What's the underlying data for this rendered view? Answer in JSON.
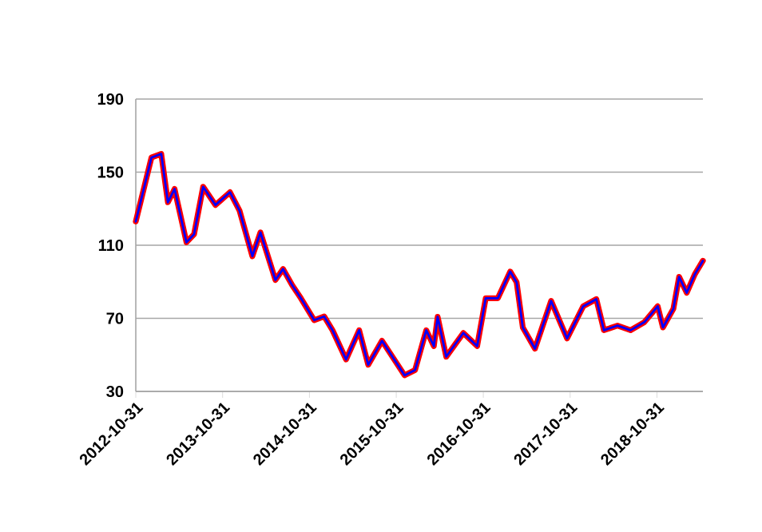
{
  "chart_data": {
    "type": "line",
    "x": [
      "2012-10-31",
      "2013-01-05",
      "2013-02-15",
      "2013-03-15",
      "2013-04-12",
      "2013-06-01",
      "2013-07-03",
      "2013-08-10",
      "2013-10-01",
      "2013-12-01",
      "2014-01-10",
      "2014-03-05",
      "2014-04-08",
      "2014-06-10",
      "2014-07-12",
      "2014-08-20",
      "2014-09-25",
      "2014-11-20",
      "2015-01-01",
      "2015-02-05",
      "2015-04-03",
      "2015-05-28",
      "2015-07-05",
      "2015-09-01",
      "2015-12-05",
      "2016-01-18",
      "2016-03-05",
      "2016-04-06",
      "2016-04-22",
      "2016-05-28",
      "2016-08-08",
      "2016-10-05",
      "2016-11-10",
      "2016-12-31",
      "2017-02-21",
      "2017-03-20",
      "2017-04-15",
      "2017-06-05",
      "2017-08-12",
      "2017-10-18",
      "2017-12-25",
      "2018-02-18",
      "2018-03-22",
      "2018-05-18",
      "2018-07-12",
      "2018-09-08",
      "2018-11-03",
      "2018-11-25",
      "2019-01-08",
      "2019-02-01",
      "2019-03-05",
      "2019-04-08",
      "2019-05-12"
    ],
    "series": [
      {
        "color": "#ff0000",
        "values": [
          123,
          158,
          160,
          133.5,
          140.8,
          111.6,
          116,
          142,
          132,
          139,
          129,
          104,
          117,
          91,
          97,
          88,
          81,
          69,
          71,
          63.5,
          47.5,
          63.5,
          44.6,
          57.7,
          38.8,
          41.7,
          63.5,
          54.8,
          70.8,
          49,
          62,
          54.8,
          81,
          81,
          95.6,
          89.7,
          65,
          53.4,
          79.5,
          59,
          76.6,
          80.5,
          63.5,
          66,
          63.5,
          67.9,
          76.6,
          65,
          75.2,
          92.7,
          84,
          94.1,
          101.5
        ]
      },
      {
        "color": "#0000ff",
        "values": [
          123,
          158,
          160,
          133.5,
          140.8,
          111.6,
          116,
          142,
          132,
          139,
          129,
          104,
          117,
          91,
          97,
          88,
          81,
          69,
          71,
          63.5,
          47.5,
          63.5,
          44.6,
          57.7,
          38.8,
          41.7,
          63.5,
          54.8,
          70.8,
          49,
          62,
          54.8,
          81,
          81,
          95.6,
          89.7,
          65,
          53.4,
          79.5,
          59,
          76.6,
          80.5,
          63.5,
          66,
          63.5,
          67.9,
          76.6,
          65,
          75.2,
          92.7,
          84,
          94.1,
          101.5
        ]
      }
    ],
    "xlim": [
      "2012-10-31",
      "2019-05-12"
    ],
    "xticks": [
      "2012-10-31",
      "2013-10-31",
      "2014-10-31",
      "2015-10-31",
      "2016-10-31",
      "2017-10-31",
      "2018-10-31"
    ],
    "ylim": [
      30,
      190
    ],
    "yticks": [
      30,
      70,
      110,
      150,
      190
    ],
    "grid": "y"
  }
}
